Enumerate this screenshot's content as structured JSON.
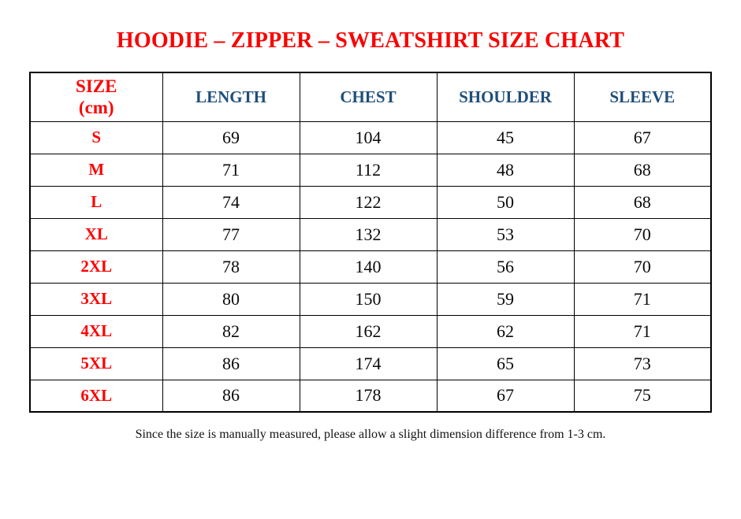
{
  "page": {
    "top_dot": "."
  },
  "colors": {
    "title_red": "#fb0000",
    "label_red": "#ff0000",
    "header_blue": "#1f4e79",
    "body_text": "#0a0a0a",
    "border": "#000000",
    "background": "#ffffff"
  },
  "chart_data": {
    "type": "table",
    "title": "HOODIE – ZIPPER – SWEATSHIRT SIZE CHART",
    "unit": "cm",
    "columns": [
      "SIZE (cm)",
      "LENGTH",
      "CHEST",
      "SHOULDER",
      "SLEEVE"
    ],
    "header": {
      "size_line1": "SIZE",
      "size_line2": "(cm)"
    },
    "rows": [
      {
        "size": "S",
        "length": 69,
        "chest": 104,
        "shoulder": 45,
        "sleeve": 67
      },
      {
        "size": "M",
        "length": 71,
        "chest": 112,
        "shoulder": 48,
        "sleeve": 68
      },
      {
        "size": "L",
        "length": 74,
        "chest": 122,
        "shoulder": 50,
        "sleeve": 68
      },
      {
        "size": "XL",
        "length": 77,
        "chest": 132,
        "shoulder": 53,
        "sleeve": 70
      },
      {
        "size": "2XL",
        "length": 78,
        "chest": 140,
        "shoulder": 56,
        "sleeve": 70
      },
      {
        "size": "3XL",
        "length": 80,
        "chest": 150,
        "shoulder": 59,
        "sleeve": 71
      },
      {
        "size": "4XL",
        "length": 82,
        "chest": 162,
        "shoulder": 62,
        "sleeve": 71
      },
      {
        "size": "5XL",
        "length": 86,
        "chest": 174,
        "shoulder": 65,
        "sleeve": 73
      },
      {
        "size": "6XL",
        "length": 86,
        "chest": 178,
        "shoulder": 67,
        "sleeve": 75
      }
    ],
    "note": "Since the size is manually measured, please allow a slight dimension difference from 1-3 cm."
  }
}
